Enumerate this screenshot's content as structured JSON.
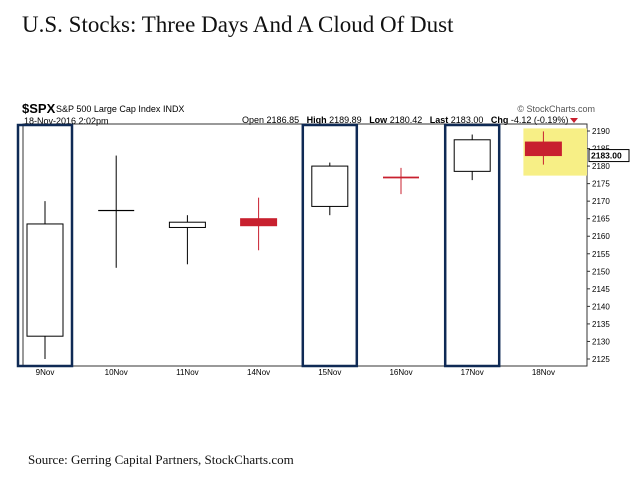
{
  "page": {
    "title": "U.S. Stocks: Three Days And A Cloud Of Dust",
    "source": "Source: Gerring Capital Partners, StockCharts.com"
  },
  "header": {
    "symbol": "$SPX",
    "description": "S&P 500 Large Cap Index",
    "exchange": "INDX",
    "watermark": "© StockCharts.com",
    "date": "18-Nov-2016 2:02pm",
    "open_label": "Open",
    "open": "2186.85",
    "high_label": "High",
    "high": "2189.89",
    "low_label": "Low",
    "low": "2180.42",
    "last_label": "Last",
    "last": "2183.00",
    "chg_label": "Chg",
    "chg": "-4.12 (-0.19%)"
  },
  "colors": {
    "up_candle": "#ffffff",
    "down_candle": "#c8202f",
    "highlight_box": "#0f2a55",
    "last_price_band": "#f7ef86"
  },
  "chart_data": {
    "type": "candlestick",
    "categories": [
      "9Nov",
      "10Nov",
      "11Nov",
      "14Nov",
      "15Nov",
      "16Nov",
      "17Nov",
      "18Nov"
    ],
    "series": [
      {
        "open": [
          2131.5,
          2167.5,
          2164.0,
          2163.0,
          2168.5,
          2176.5,
          2178.5,
          2186.85
        ],
        "high": [
          2170.0,
          2183.0,
          2166.0,
          2171.0,
          2181.0,
          2179.5,
          2189.0,
          2189.89
        ],
        "low": [
          2125.0,
          2151.0,
          2152.0,
          2156.0,
          2166.0,
          2172.0,
          2176.0,
          2180.42
        ],
        "close": [
          2163.5,
          2167.5,
          2162.5,
          2165.0,
          2180.0,
          2177.0,
          2187.5,
          2183.0
        ]
      }
    ],
    "y_ticks": [
      "2125",
      "2130",
      "2135",
      "2140",
      "2145",
      "2150",
      "2155",
      "2160",
      "2165",
      "2170",
      "2175",
      "2180",
      "2185",
      "2190"
    ],
    "ylim": [
      2123,
      2192
    ],
    "last_value_label": "2183.00",
    "highlighted_categories": [
      "9Nov",
      "15Nov",
      "17Nov"
    ],
    "grid": false
  }
}
